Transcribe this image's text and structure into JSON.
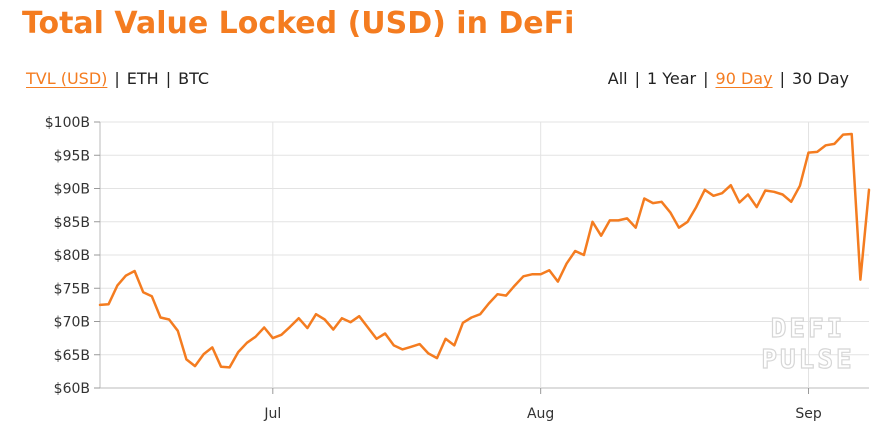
{
  "title": "Total Value Locked (USD) in DeFi",
  "metric_tabs": [
    {
      "label": "TVL (USD)",
      "active": true
    },
    {
      "label": "ETH",
      "active": false
    },
    {
      "label": "BTC",
      "active": false
    }
  ],
  "range_tabs": [
    {
      "label": "All",
      "active": false
    },
    {
      "label": "1 Year",
      "active": false
    },
    {
      "label": "90 Day",
      "active": true
    },
    {
      "label": "30 Day",
      "active": false
    }
  ],
  "separator": "|",
  "watermark": {
    "line1": "DEFI",
    "line2": "PULSE"
  },
  "colors": {
    "accent": "#f47c20",
    "line": "#f47c20",
    "grid": "#e3e3e3",
    "text": "#222222"
  },
  "chart_data": {
    "type": "line",
    "title": "Total Value Locked (USD) in DeFi",
    "xlabel": "",
    "ylabel": "",
    "x_ticks": [
      "Jul",
      "Aug",
      "Sep"
    ],
    "y_ticks": [
      "$60B",
      "$65B",
      "$70B",
      "$75B",
      "$80B",
      "$85B",
      "$90B",
      "$95B",
      "$100B"
    ],
    "ylim": [
      60,
      100
    ],
    "grid": true,
    "series": [
      {
        "name": "",
        "x": [
          "2021-06-11",
          "2021-06-12",
          "2021-06-13",
          "2021-06-14",
          "2021-06-15",
          "2021-06-16",
          "2021-06-17",
          "2021-06-18",
          "2021-06-19",
          "2021-06-20",
          "2021-06-21",
          "2021-06-22",
          "2021-06-23",
          "2021-06-24",
          "2021-06-25",
          "2021-06-26",
          "2021-06-27",
          "2021-06-28",
          "2021-06-29",
          "2021-06-30",
          "2021-07-01",
          "2021-07-02",
          "2021-07-03",
          "2021-07-04",
          "2021-07-05",
          "2021-07-06",
          "2021-07-07",
          "2021-07-08",
          "2021-07-09",
          "2021-07-10",
          "2021-07-11",
          "2021-07-12",
          "2021-07-13",
          "2021-07-14",
          "2021-07-15",
          "2021-07-16",
          "2021-07-17",
          "2021-07-18",
          "2021-07-19",
          "2021-07-20",
          "2021-07-21",
          "2021-07-22",
          "2021-07-23",
          "2021-07-24",
          "2021-07-25",
          "2021-07-26",
          "2021-07-27",
          "2021-07-28",
          "2021-07-29",
          "2021-07-30",
          "2021-07-31",
          "2021-08-01",
          "2021-08-02",
          "2021-08-03",
          "2021-08-04",
          "2021-08-05",
          "2021-08-06",
          "2021-08-07",
          "2021-08-08",
          "2021-08-09",
          "2021-08-10",
          "2021-08-11",
          "2021-08-12",
          "2021-08-13",
          "2021-08-14",
          "2021-08-15",
          "2021-08-16",
          "2021-08-17",
          "2021-08-18",
          "2021-08-19",
          "2021-08-20",
          "2021-08-21",
          "2021-08-22",
          "2021-08-23",
          "2021-08-24",
          "2021-08-25",
          "2021-08-26",
          "2021-08-27",
          "2021-08-28",
          "2021-08-29",
          "2021-08-30",
          "2021-08-31",
          "2021-09-01",
          "2021-09-02",
          "2021-09-03",
          "2021-09-04",
          "2021-09-05",
          "2021-09-06",
          "2021-09-07",
          "2021-09-08"
        ],
        "values": [
          72.5,
          72.6,
          75.4,
          76.9,
          77.6,
          74.4,
          73.8,
          70.6,
          70.3,
          68.6,
          64.3,
          63.3,
          65.1,
          66.1,
          63.2,
          63.1,
          65.4,
          66.8,
          67.7,
          69.1,
          67.5,
          68.0,
          69.2,
          70.5,
          69.0,
          71.1,
          70.3,
          68.8,
          70.5,
          69.9,
          70.8,
          69.1,
          67.4,
          68.2,
          66.4,
          65.8,
          66.2,
          66.6,
          65.2,
          64.5,
          67.4,
          66.4,
          69.8,
          70.6,
          71.1,
          72.7,
          74.1,
          73.9,
          75.4,
          76.8,
          77.1,
          77.1,
          77.7,
          76.0,
          78.7,
          80.6,
          80.0,
          85.0,
          82.9,
          85.2,
          85.2,
          85.5,
          84.1,
          88.5,
          87.8,
          88.0,
          86.4,
          84.1,
          85.0,
          87.2,
          89.8,
          88.9,
          89.3,
          90.5,
          87.9,
          89.1,
          87.2,
          89.7,
          89.5,
          89.1,
          88.0,
          90.4,
          95.4,
          95.5,
          96.5,
          96.7,
          98.1,
          98.2,
          76.3,
          89.8
        ]
      }
    ]
  }
}
